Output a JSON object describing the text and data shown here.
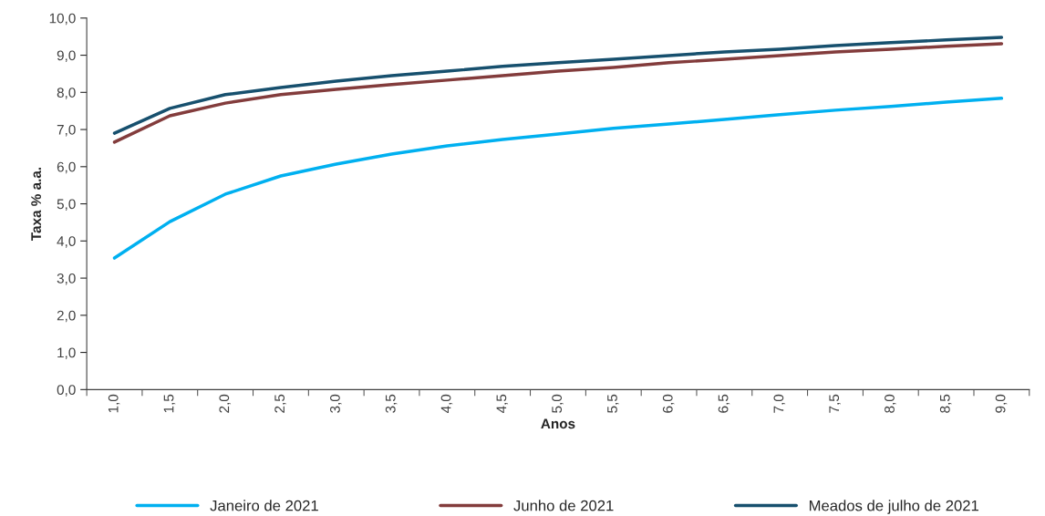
{
  "chart_data": {
    "type": "line",
    "xlabel": "Anos",
    "ylabel": "Taxa % a.a.",
    "categories": [
      "1,0",
      "1,5",
      "2,0",
      "2,5",
      "3,0",
      "3,5",
      "4,0",
      "4,5",
      "5,0",
      "5,5",
      "6,0",
      "6,5",
      "7,0",
      "7,5",
      "8,0",
      "8,5",
      "9,0"
    ],
    "series": [
      {
        "name": "Janeiro de 2021",
        "color": "#00b0f0",
        "values": [
          3.54,
          4.52,
          5.26,
          5.75,
          6.07,
          6.34,
          6.56,
          6.73,
          6.88,
          7.03,
          7.15,
          7.27,
          7.4,
          7.52,
          7.62,
          7.74,
          7.84
        ]
      },
      {
        "name": "Junho de 2021",
        "color": "#833c3c",
        "values": [
          6.66,
          7.37,
          7.71,
          7.94,
          8.08,
          8.21,
          8.33,
          8.45,
          8.57,
          8.67,
          8.8,
          8.89,
          8.99,
          9.09,
          9.16,
          9.24,
          9.31
        ]
      },
      {
        "name": "Meados de julho de 2021",
        "color": "#17506e",
        "values": [
          6.9,
          7.57,
          7.94,
          8.13,
          8.3,
          8.45,
          8.57,
          8.7,
          8.8,
          8.89,
          8.99,
          9.09,
          9.16,
          9.26,
          9.34,
          9.41,
          9.48
        ]
      }
    ],
    "ylim": [
      0,
      10
    ],
    "yticks": [
      {
        "value": 0,
        "label": "0,0"
      },
      {
        "value": 1,
        "label": "1,0"
      },
      {
        "value": 2,
        "label": "2,0"
      },
      {
        "value": 3,
        "label": "3,0"
      },
      {
        "value": 4,
        "label": "4,0"
      },
      {
        "value": 5,
        "label": "5,0"
      },
      {
        "value": 6,
        "label": "6,0"
      },
      {
        "value": 7,
        "label": "7,0"
      },
      {
        "value": 8,
        "label": "8,0"
      },
      {
        "value": 9,
        "label": "9,0"
      },
      {
        "value": 10,
        "label": "10,0"
      }
    ],
    "grid": false,
    "legend": "bottom",
    "marker": "none",
    "line_style": "solid"
  }
}
